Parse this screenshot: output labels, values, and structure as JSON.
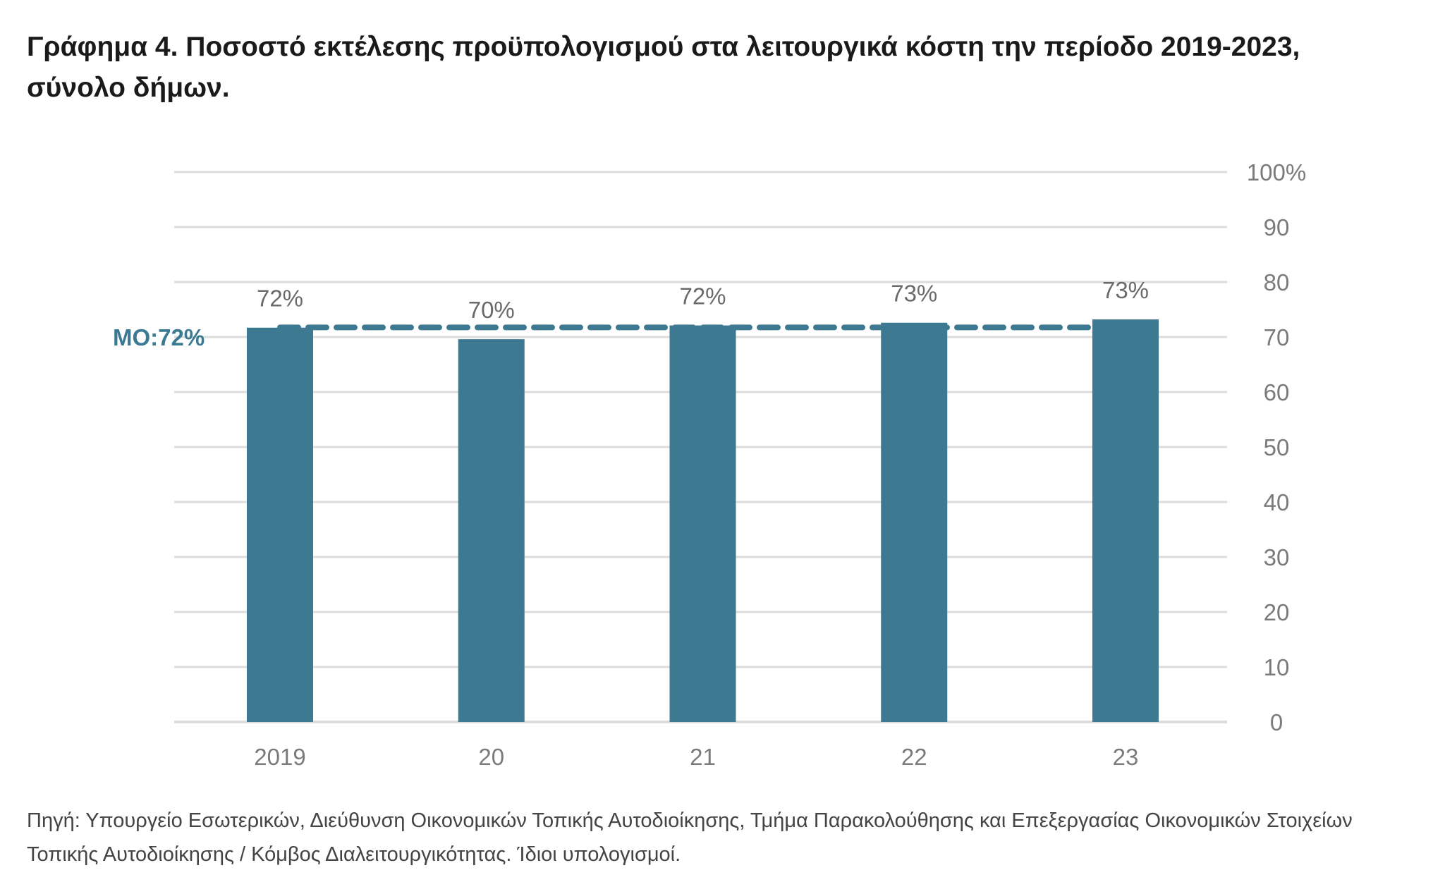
{
  "title": "Γράφημα 4. Ποσοστό εκτέλεσης προϋπολογισμού στα λειτουργικά κόστη την περίοδο 2019-2023, σύνολο δήμων.",
  "source": "Πηγή: Υπουργείο Εσωτερικών, Διεύθυνση Οικονομικών Τοπικής Αυτοδιοίκησης, Τμήμα Παρακολούθησης και Επεξεργασίας Οικονομικών Στοιχείων Τοπικής Αυτοδιοίκησης / Κόμβος Διαλειτουργικότητας. Ίδιοι υπολογισμοί.",
  "chart_data": {
    "type": "bar",
    "categories": [
      "2019",
      "20",
      "21",
      "22",
      "23"
    ],
    "values": [
      71.7,
      69.6,
      72.1,
      72.6,
      73.2
    ],
    "data_labels": [
      "72%",
      "70%",
      "72%",
      "73%",
      "73%"
    ],
    "reference_line": {
      "label": "ΜΟ:72%",
      "value": 72,
      "style": "dashed"
    },
    "yaxis": {
      "position": "right",
      "ticks": [
        0,
        10,
        20,
        30,
        40,
        50,
        60,
        70,
        80,
        90,
        100
      ],
      "tick_labels": [
        "0",
        "10",
        "20",
        "30",
        "40",
        "50",
        "60",
        "70",
        "80",
        "90",
        "100%"
      ]
    },
    "ylim": [
      0,
      100
    ],
    "grid": true,
    "colors": {
      "bar": "#3d7a92",
      "reference_line": "#3d7a92",
      "grid": "#dcdcdc"
    }
  }
}
